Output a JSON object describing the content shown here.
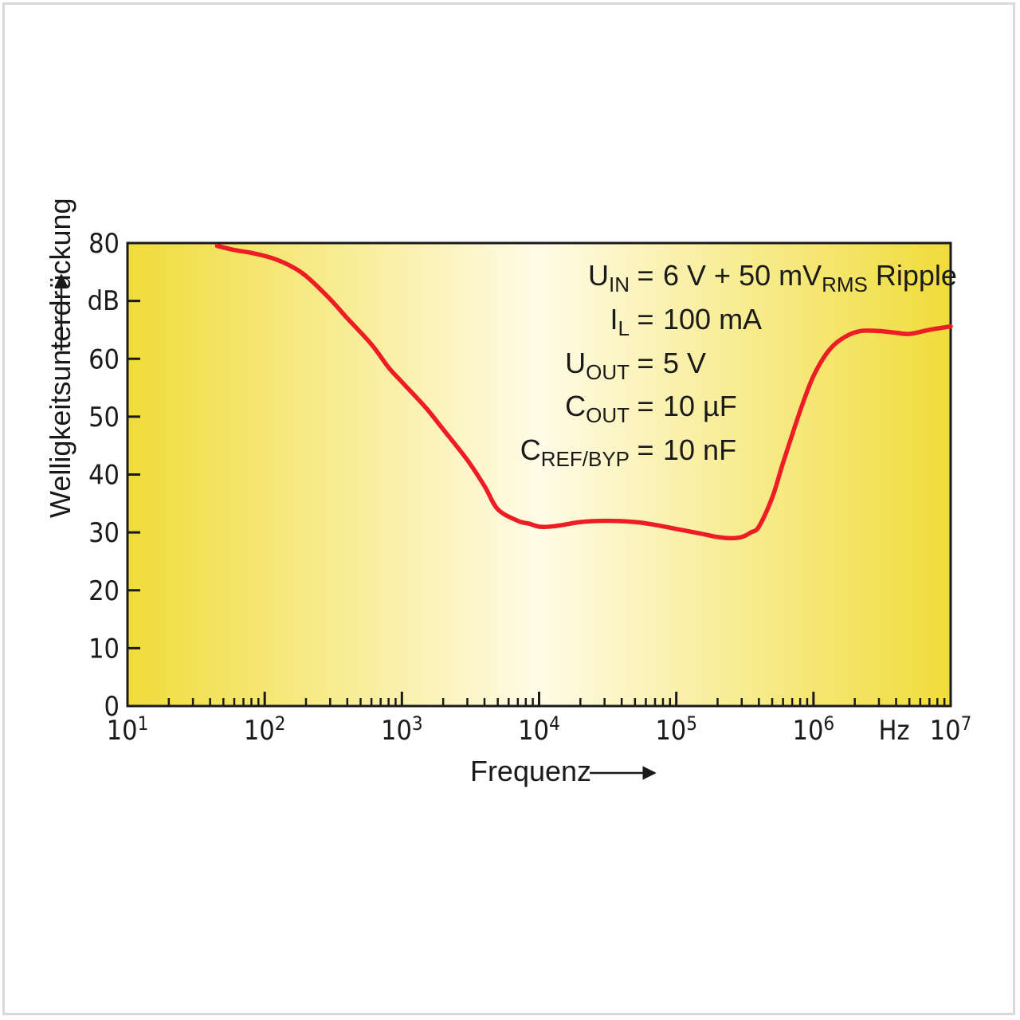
{
  "chart_data": {
    "type": "line",
    "title": "",
    "xscale": "log",
    "xlim": [
      10,
      10000000
    ],
    "ylim": [
      0,
      80
    ],
    "xlabel": "Frequenz",
    "xunit": "Hz",
    "ylabel": "Welligkeitsunterdrückung",
    "yunit": "dB",
    "x_ticks": [
      {
        "base": "10",
        "exp": "1",
        "value": 10
      },
      {
        "base": "10",
        "exp": "2",
        "value": 100
      },
      {
        "base": "10",
        "exp": "3",
        "value": 1000
      },
      {
        "base": "10",
        "exp": "4",
        "value": 10000
      },
      {
        "base": "10",
        "exp": "5",
        "value": 100000
      },
      {
        "base": "10",
        "exp": "6",
        "value": 1000000
      },
      {
        "base": "10",
        "exp": "7",
        "value": 10000000
      }
    ],
    "y_ticks": [
      "0",
      "10",
      "20",
      "30",
      "40",
      "50",
      "60",
      "80"
    ],
    "y_tick_values": [
      0,
      10,
      20,
      30,
      40,
      50,
      60,
      80
    ],
    "series": [
      {
        "name": "Welligkeitsunterdrückung",
        "color": "#ee1c24",
        "x": [
          45,
          60,
          80,
          110,
          150,
          200,
          300,
          400,
          600,
          800,
          1000,
          1500,
          2000,
          3000,
          4000,
          5000,
          7000,
          8500,
          10000,
          12000,
          15000,
          20000,
          30000,
          50000,
          70000,
          100000,
          150000,
          200000,
          250000,
          300000,
          350000,
          400000,
          500000,
          600000,
          800000,
          1000000,
          1300000,
          1700000,
          2200000,
          3000000,
          4000000,
          5000000,
          7000000,
          10000000
        ],
        "y": [
          79.5,
          78.8,
          78.3,
          77.5,
          76.2,
          74.3,
          70.3,
          67.0,
          62.5,
          58.5,
          56.0,
          51.5,
          47.8,
          42.5,
          38.0,
          34.0,
          32.0,
          31.5,
          31.0,
          31.0,
          31.3,
          31.8,
          32.0,
          31.8,
          31.3,
          30.6,
          29.8,
          29.2,
          29.0,
          29.2,
          30.0,
          31.0,
          36.0,
          42.0,
          51.0,
          57.0,
          61.5,
          63.8,
          64.8,
          64.8,
          64.5,
          64.3,
          65.0,
          65.6
        ]
      }
    ],
    "annotations": [
      {
        "lhs": "U",
        "lhs_sub": "IN",
        "eq": "=",
        "rhs": "6 V + 50 mV",
        "rhs_sub": "RMS",
        "rhs_tail": " Ripple"
      },
      {
        "lhs": "I",
        "lhs_sub": "L",
        "eq": "=",
        "rhs": "100 mA",
        "rhs_sub": "",
        "rhs_tail": ""
      },
      {
        "lhs": "U",
        "lhs_sub": "OUT",
        "eq": "=",
        "rhs": "5 V",
        "rhs_sub": "",
        "rhs_tail": ""
      },
      {
        "lhs": "C",
        "lhs_sub": "OUT",
        "eq": "=",
        "rhs": "10 µF",
        "rhs_sub": "",
        "rhs_tail": ""
      },
      {
        "lhs": "C",
        "lhs_sub": "REF/BYP",
        "eq": "=",
        "rhs": "10 nF",
        "rhs_sub": "",
        "rhs_tail": ""
      }
    ],
    "colors": {
      "background_edge": "#f0dc3a",
      "background_center": "#fffbe6",
      "curve": "#ee1c24",
      "axis": "#1a1a1a"
    }
  }
}
